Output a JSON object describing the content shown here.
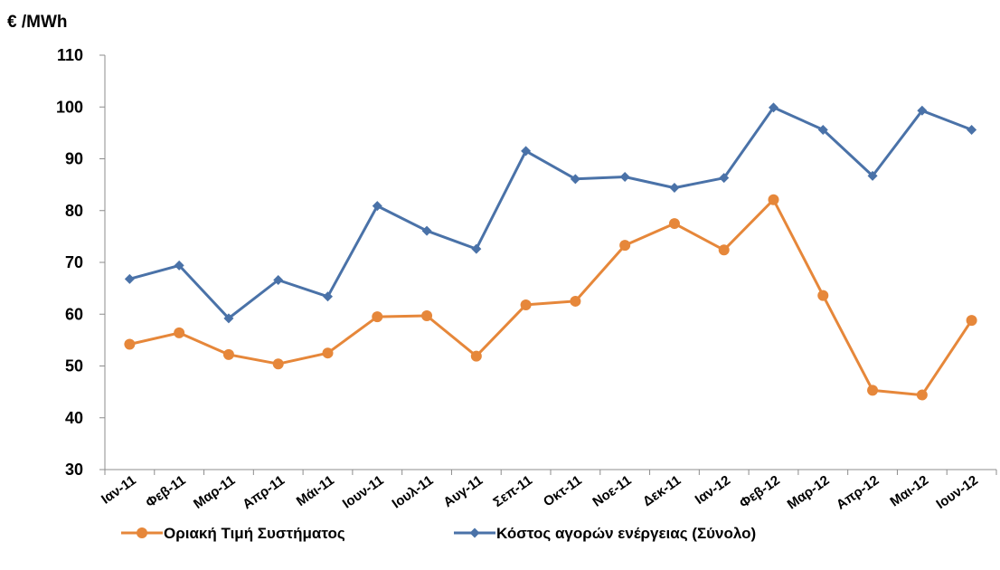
{
  "chart_data": {
    "type": "line",
    "unit_label": "€ /MWh",
    "categories": [
      "Ιαν-11",
      "Φεβ-11",
      "Μαρ-11",
      "Απρ-11",
      "Μάι-11",
      "Ιουν-11",
      "Ιουλ-11",
      "Αυγ-11",
      "Σεπ-11",
      "Οκτ-11",
      "Νοε-11",
      "Δεκ-11",
      "Ιαν-12",
      "Φεβ-12",
      "Μαρ-12",
      "Απρ-12",
      "Μαι-12",
      "Ιουν-12"
    ],
    "ylim": [
      30,
      110
    ],
    "yticks": [
      30,
      40,
      50,
      60,
      70,
      80,
      90,
      100,
      110
    ],
    "grid": false,
    "legend_position": "bottom",
    "series": [
      {
        "name": "Οριακή Τιμή Συστήματος",
        "color": "#E6873A",
        "marker": "circle",
        "values": [
          54.2,
          56.4,
          52.2,
          50.4,
          52.5,
          59.5,
          59.7,
          51.9,
          61.8,
          62.5,
          73.3,
          77.5,
          72.4,
          82.1,
          63.6,
          45.3,
          44.4,
          58.8
        ]
      },
      {
        "name": "Κόστος αγορών ενέργειας (Σύνολο)",
        "color": "#4A72A8",
        "marker": "diamond",
        "values": [
          66.8,
          69.4,
          59.2,
          66.6,
          63.4,
          80.9,
          76.1,
          72.6,
          91.5,
          86.1,
          86.5,
          84.4,
          86.3,
          99.9,
          95.6,
          86.7,
          99.3,
          95.6
        ]
      }
    ]
  }
}
